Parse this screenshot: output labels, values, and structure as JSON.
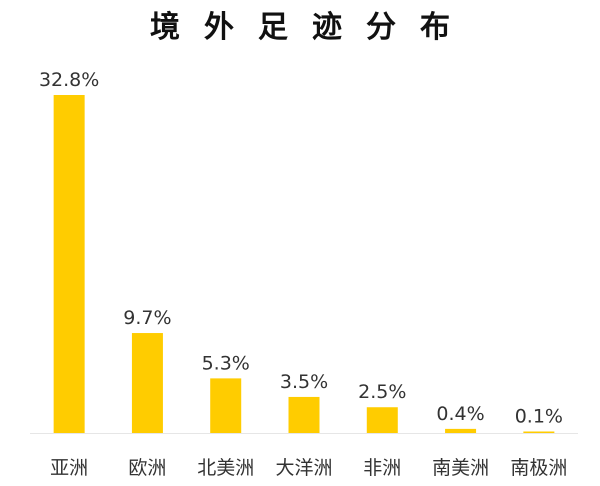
{
  "chart_data": {
    "type": "bar",
    "title": "境外足迹分布",
    "categories": [
      "亚洲",
      "欧洲",
      "北美洲",
      "大洋洲",
      "非洲",
      "南美洲",
      "南极洲"
    ],
    "values": [
      32.8,
      9.7,
      5.3,
      3.5,
      2.5,
      0.4,
      0.1
    ],
    "value_labels": [
      "32.8%",
      "9.7%",
      "5.3%",
      "3.5%",
      "2.5%",
      "0.4%",
      "0.1%"
    ],
    "unit": "%",
    "xlabel": "",
    "ylabel": "",
    "ylim": [
      0,
      32.8
    ],
    "grid": false,
    "legend": "none",
    "bar_color": "#FFCC00",
    "baseline_color": "#e6e6e6"
  }
}
